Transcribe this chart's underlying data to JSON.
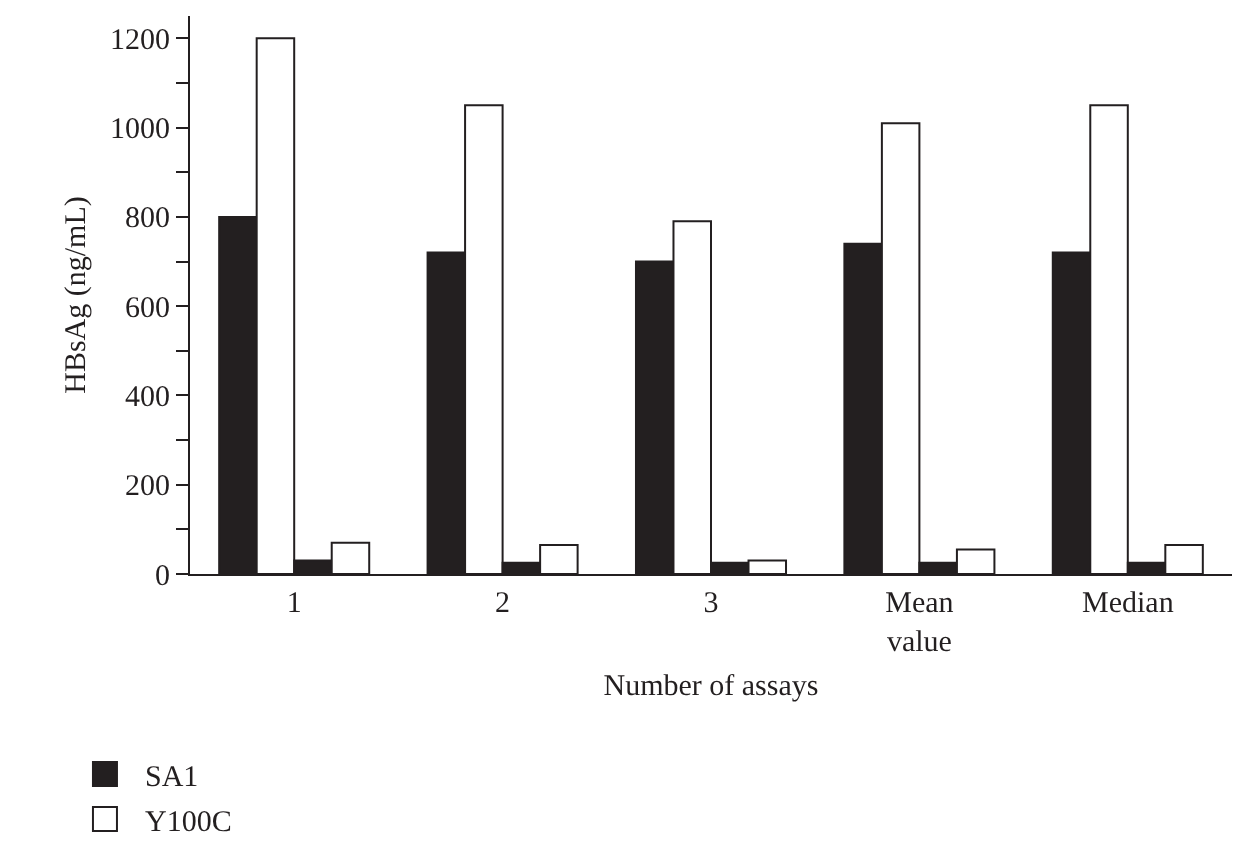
{
  "chart_data": {
    "type": "bar",
    "xlabel": "Number of assays",
    "ylabel": "HBsAg (ng/mL)",
    "categories": [
      "1",
      "2",
      "3",
      "Mean value",
      "Median"
    ],
    "series": [
      {
        "name": "SA1",
        "color": "#231f20",
        "values": [
          800,
          720,
          700,
          740,
          720
        ]
      },
      {
        "name": "Y100C",
        "color": "#ffffff",
        "values": [
          1200,
          1050,
          790,
          1010,
          1050
        ]
      },
      {
        "color": "#231f20",
        "values": [
          30,
          25,
          25,
          25,
          25
        ]
      },
      {
        "color": "#ffffff",
        "values": [
          70,
          65,
          30,
          55,
          65
        ]
      }
    ],
    "ylim": [
      0,
      1250
    ],
    "yticks": [
      0,
      {
        "value": 100,
        "label": null
      },
      200,
      {
        "value": 300,
        "label": null
      },
      400,
      {
        "value": 500,
        "label": null
      },
      600,
      {
        "value": 700,
        "label": null
      },
      800,
      {
        "value": 900,
        "label": null
      },
      1000,
      {
        "value": 1100,
        "label": null
      },
      1200
    ],
    "grid": false,
    "legend": "bottom left"
  }
}
